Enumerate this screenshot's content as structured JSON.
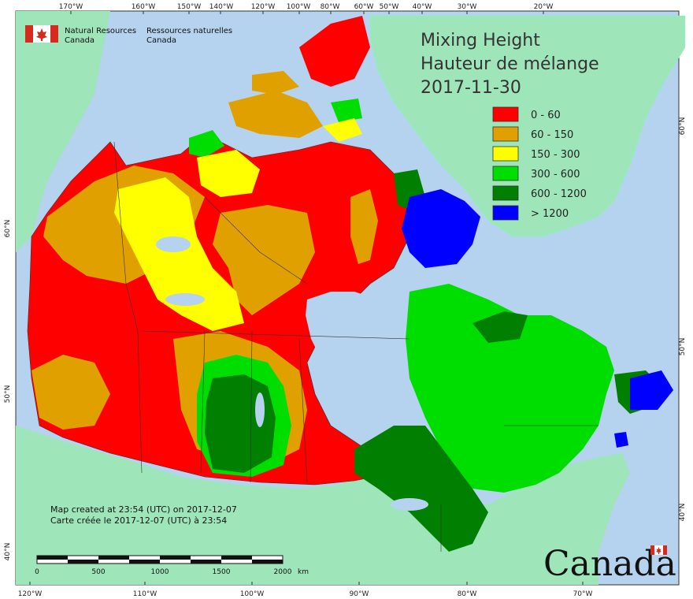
{
  "header": {
    "title_en": "Mixing Height",
    "title_fr": "Hauteur de mélange",
    "date": "2017-11-30"
  },
  "credit": {
    "en_line1": "Natural Resources",
    "en_line2": "Canada",
    "fr_line1": "Ressources naturelles",
    "fr_line2": "Canada"
  },
  "legend": [
    {
      "label": "0 - 60",
      "color": "#ff0000"
    },
    {
      "label": "60 - 150",
      "color": "#e0a000"
    },
    {
      "label": "150 - 300",
      "color": "#ffff00"
    },
    {
      "label": "300 - 600",
      "color": "#00dd00"
    },
    {
      "label": "600 - 1200",
      "color": "#007f00"
    },
    {
      "label": "> 1200",
      "color": "#0000ff"
    }
  ],
  "note": {
    "line_en": "Map created at 23:54 (UTC) on 2017-12-07",
    "line_fr": "Carte créée le 2017-12-07 (UTC) à 23:54"
  },
  "scale_bar": {
    "labels": [
      "0",
      "500",
      "1000",
      "1500",
      "2000"
    ],
    "unit": "km"
  },
  "axes": {
    "top_ticks": [
      "170°W",
      "160°W",
      "150°W",
      "140°W",
      "120°W",
      "100°W",
      "80°W",
      "60°W",
      "50°W",
      "40°W",
      "30°W",
      "20°W"
    ],
    "bottom_ticks": [
      "120°W",
      "110°W",
      "100°W",
      "90°W",
      "80°W",
      "70°W"
    ],
    "left_ticks": [
      "60°N",
      "50°N",
      "40°N"
    ],
    "right_ticks": [
      "60°N",
      "50°N",
      "40°N"
    ]
  },
  "wordmark": "Canada",
  "colors": {
    "water": "#b5d2ef",
    "other_land": "#9ee5ba",
    "border": "#333333"
  }
}
